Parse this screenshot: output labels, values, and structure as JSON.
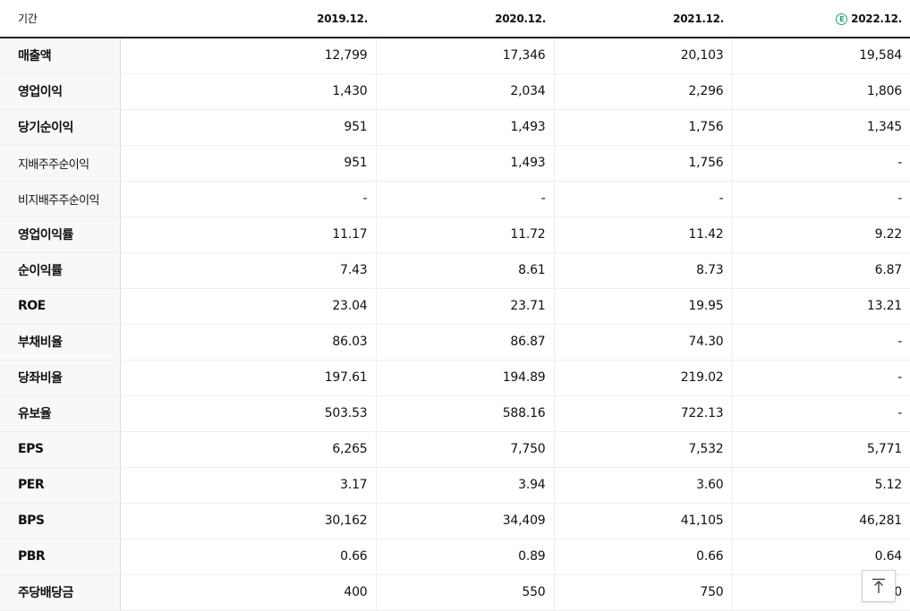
{
  "header": {
    "label": "기간",
    "estimate_mark": "E",
    "years": [
      "2019.12.",
      "2020.12.",
      "2021.12.",
      "2022.12."
    ]
  },
  "rows": [
    {
      "label": "매출액",
      "values": [
        "12,799",
        "17,346",
        "20,103",
        "19,584"
      ]
    },
    {
      "label": "영업이익",
      "values": [
        "1,430",
        "2,034",
        "2,296",
        "1,806"
      ]
    },
    {
      "label": "당기순이익",
      "values": [
        "951",
        "1,493",
        "1,756",
        "1,345"
      ]
    },
    {
      "label": "지배주주순이익",
      "values": [
        "951",
        "1,493",
        "1,756",
        "-"
      ]
    },
    {
      "label": "비지배주주순이익",
      "values": [
        "-",
        "-",
        "-",
        "-"
      ]
    },
    {
      "label": "영업이익률",
      "values": [
        "11.17",
        "11.72",
        "11.42",
        "9.22"
      ]
    },
    {
      "label": "순이익률",
      "values": [
        "7.43",
        "8.61",
        "8.73",
        "6.87"
      ]
    },
    {
      "label": "ROE",
      "values": [
        "23.04",
        "23.71",
        "19.95",
        "13.21"
      ]
    },
    {
      "label": "부채비율",
      "values": [
        "86.03",
        "86.87",
        "74.30",
        "-"
      ]
    },
    {
      "label": "당좌비율",
      "values": [
        "197.61",
        "194.89",
        "219.02",
        "-"
      ]
    },
    {
      "label": "유보율",
      "values": [
        "503.53",
        "588.16",
        "722.13",
        "-"
      ]
    },
    {
      "label": "EPS",
      "values": [
        "6,265",
        "7,750",
        "7,532",
        "5,771"
      ]
    },
    {
      "label": "PER",
      "values": [
        "3.17",
        "3.94",
        "3.60",
        "5.12"
      ]
    },
    {
      "label": "BPS",
      "values": [
        "30,162",
        "34,409",
        "41,105",
        "46,281"
      ]
    },
    {
      "label": "PBR",
      "values": [
        "0.66",
        "0.89",
        "0.66",
        "0.64"
      ]
    },
    {
      "label": "주당배당금",
      "values": [
        "400",
        "550",
        "750",
        "0"
      ]
    }
  ],
  "scroll_top_icon": "arrow-up-to-line-icon",
  "colors": {
    "estimate": "#1aa86a",
    "header_rule": "#222222",
    "label_bg": "#f8f8f8"
  }
}
